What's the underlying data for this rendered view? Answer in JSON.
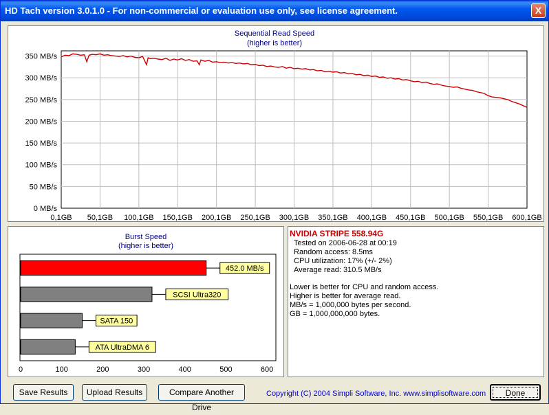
{
  "window": {
    "title": "HD Tach version 3.0.1.0  - For non-commercial or evaluation use only, see license agreement.",
    "close_glyph": "X"
  },
  "sequential_chart": {
    "title": "Sequential Read Speed",
    "subtitle": "(higher is better)",
    "line_color": "#cc0000"
  },
  "burst_chart": {
    "title": "Burst Speed",
    "subtitle": "(higher is better)"
  },
  "chart_data": [
    {
      "type": "line",
      "title": "Sequential Read Speed",
      "subtitle": "(higher is better)",
      "xlabel": "",
      "ylabel": "",
      "x_tick_labels": [
        "0,1GB",
        "50,1GB",
        "100,1GB",
        "150,1GB",
        "200,1GB",
        "250,1GB",
        "300,1GB",
        "350,1GB",
        "400,1GB",
        "450,1GB",
        "500,1GB",
        "550,1GB",
        "600,1GB"
      ],
      "y_tick_labels": [
        "0 MB/s",
        "50 MB/s",
        "100 MB/s",
        "150 MB/s",
        "200 MB/s",
        "250 MB/s",
        "300 MB/s",
        "350 MB/s"
      ],
      "xlim": [
        0.1,
        600.1
      ],
      "ylim": [
        0,
        362
      ],
      "grid": true,
      "series": [
        {
          "x": [
            0.1,
            5,
            10,
            15,
            20,
            25,
            30,
            33,
            36,
            40,
            45,
            50,
            55,
            60,
            65,
            70,
            75,
            80,
            85,
            90,
            95,
            100,
            105,
            110,
            112,
            115,
            120,
            125,
            130,
            135,
            140,
            145,
            150,
            155,
            160,
            165,
            170,
            175,
            178,
            180,
            185,
            190,
            195,
            200,
            205,
            210,
            215,
            220,
            225,
            230,
            235,
            240,
            245,
            250,
            255,
            260,
            265,
            270,
            275,
            280,
            285,
            290,
            295,
            300,
            305,
            310,
            315,
            320,
            325,
            330,
            335,
            340,
            345,
            350,
            355,
            360,
            365,
            370,
            375,
            380,
            385,
            390,
            395,
            400,
            405,
            410,
            415,
            420,
            425,
            430,
            435,
            440,
            445,
            450,
            455,
            460,
            465,
            470,
            475,
            480,
            485,
            490,
            495,
            500,
            505,
            510,
            515,
            520,
            525,
            530,
            535,
            540,
            545,
            550,
            555,
            560,
            565,
            570,
            575,
            580,
            585,
            590,
            595,
            600.1
          ],
          "y": [
            348,
            352,
            351,
            355,
            354,
            352,
            353,
            337,
            352,
            354,
            353,
            355,
            352,
            353,
            351,
            350,
            349,
            351,
            348,
            350,
            347,
            346,
            349,
            330,
            346,
            344,
            345,
            343,
            342,
            345,
            340,
            343,
            341,
            344,
            340,
            342,
            338,
            339,
            330,
            341,
            338,
            340,
            336,
            337,
            335,
            336,
            334,
            335,
            333,
            334,
            332,
            333,
            330,
            331,
            328,
            329,
            326,
            327,
            325,
            324,
            326,
            322,
            324,
            321,
            322,
            320,
            321,
            318,
            319,
            316,
            317,
            314,
            315,
            313,
            314,
            311,
            312,
            309,
            310,
            307,
            308,
            305,
            306,
            303,
            304,
            301,
            302,
            299,
            300,
            297,
            298,
            295,
            296,
            293,
            291,
            292,
            289,
            290,
            287,
            285,
            286,
            283,
            281,
            280,
            278,
            279,
            276,
            274,
            272,
            271,
            268,
            266,
            264,
            259,
            256,
            255,
            254,
            252,
            250,
            246,
            243,
            240,
            236,
            232
          ]
        }
      ]
    },
    {
      "type": "bar",
      "orientation": "horizontal",
      "title": "Burst Speed",
      "subtitle": "(higher is better)",
      "x_tick_labels": [
        "0",
        "100",
        "200",
        "300",
        "400",
        "500",
        "600"
      ],
      "xlim": [
        0,
        620
      ],
      "categories": [
        "452.0 MB/s",
        "SCSI Ultra320",
        "SATA 150",
        "ATA UltraDMA 6"
      ],
      "values": [
        452.0,
        320,
        150,
        133
      ],
      "colors": [
        "#ff0000",
        "#808080",
        "#808080",
        "#808080"
      ]
    }
  ],
  "info": {
    "drive_name": "NVIDIA STRIPE 558.94G",
    "tested_on": "Tested on 2006-06-28 at 00:19",
    "random_access": "Random access: 8.5ms",
    "cpu_utilization": "CPU utilization: 17% (+/- 2%)",
    "average_read": "Average read: 310.5 MB/s",
    "note_1": "Lower is better for CPU and random access.",
    "note_2": "Higher is better for average read.",
    "note_3": "MB/s = 1,000,000 bytes per second.",
    "note_4": "GB = 1,000,000,000 bytes."
  },
  "buttons": {
    "save": "Save Results",
    "upload": "Upload Results",
    "compare": "Compare Another Drive",
    "done": "Done"
  },
  "copyright": "Copyright (C) 2004 Simpli Software, Inc. www.simplisoftware.com"
}
